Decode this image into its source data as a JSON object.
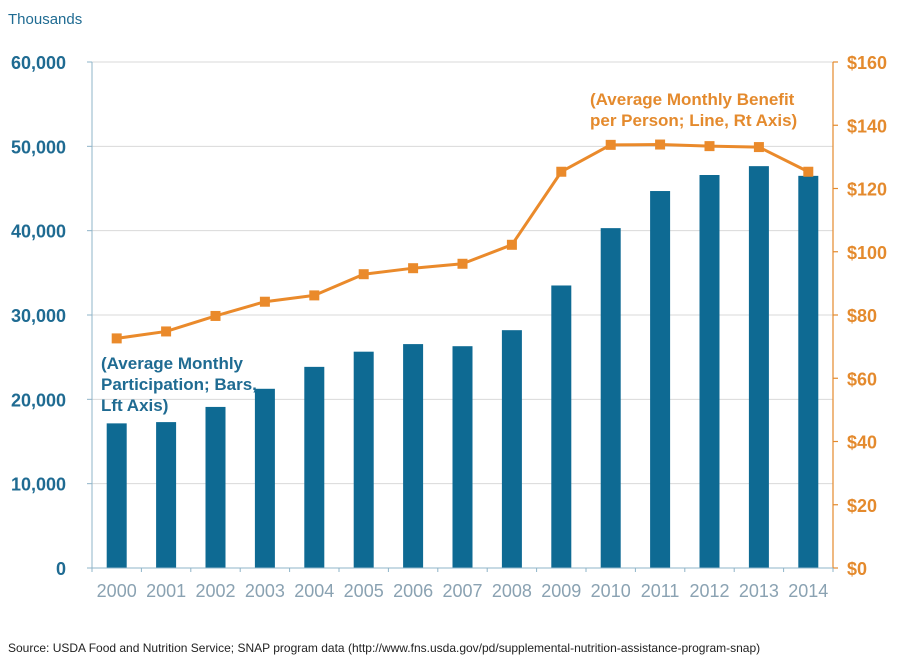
{
  "colors": {
    "bar": "#0e6a93",
    "line": "#ea8a2b",
    "left_axis_text": "#1f6b92",
    "right_axis_text": "#e48a2d",
    "x_tick_text": "#8aa2b2",
    "grid": "#d9d9d9",
    "axis_line": "#8fb4c8",
    "source_text": "#222222"
  },
  "chart_data": {
    "type": "bar",
    "categories": [
      "2000",
      "2001",
      "2002",
      "2003",
      "2004",
      "2005",
      "2006",
      "2007",
      "2008",
      "2009",
      "2010",
      "2011",
      "2012",
      "2013",
      "2014"
    ],
    "series": [
      {
        "type": "bar",
        "axis": "left",
        "values": [
          17150,
          17300,
          19100,
          21250,
          23850,
          25650,
          26550,
          26300,
          28200,
          33500,
          40300,
          44700,
          46600,
          47650,
          46500
        ]
      },
      {
        "type": "line",
        "axis": "right",
        "values": [
          72.6,
          74.8,
          79.7,
          84.2,
          86.2,
          92.9,
          94.8,
          96.2,
          102.2,
          125.3,
          133.8,
          133.9,
          133.4,
          133.1,
          125.3
        ]
      }
    ],
    "left_axis": {
      "label": "Thousands",
      "range": [
        0,
        60000
      ],
      "ticks": [
        "0",
        "10,000",
        "20,000",
        "30,000",
        "40,000",
        "50,000",
        "60,000"
      ]
    },
    "right_axis": {
      "range": [
        0,
        160
      ],
      "ticks": [
        "$0",
        "$20",
        "$40",
        "$60",
        "$80",
        "$100",
        "$120",
        "$140",
        "$160"
      ]
    },
    "grid": true,
    "annotations": {
      "bars": [
        "(Average Monthly",
        "Participation; Bars,",
        "Lft Axis)"
      ],
      "line": [
        "(Average Monthly Benefit",
        "per Person; Line, Rt Axis)"
      ]
    },
    "source": "Source: USDA Food and Nutrition Service; SNAP program data (http://www.fns.usda.gov/pd/supplemental-nutrition-assistance-program-snap)"
  }
}
